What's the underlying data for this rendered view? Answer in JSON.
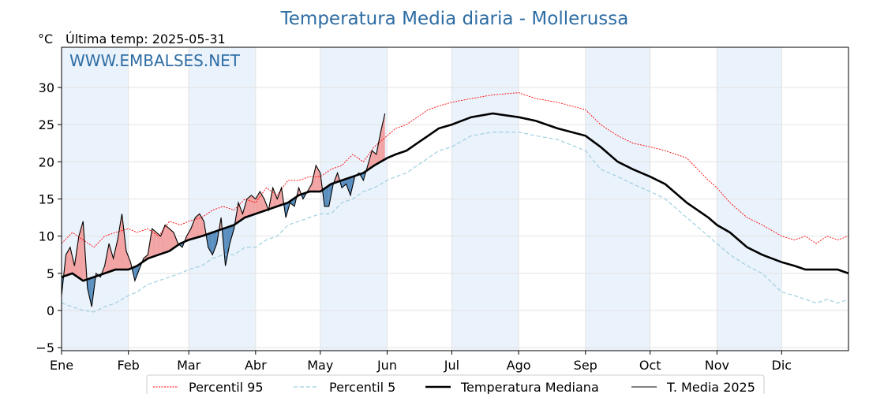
{
  "chart_data": {
    "type": "line",
    "title": "Temperatura Media diaria - Mollerussa",
    "unit_label": "°C",
    "last_temp_label": "Última temp: 2025-05-31",
    "watermark": "WWW.EMBALSES.NET",
    "xlabel": "",
    "ylabel": "",
    "ylim": [
      -5.4,
      35.4
    ],
    "xlim": [
      0,
      365
    ],
    "yticks": [
      -5,
      0,
      5,
      10,
      15,
      20,
      25,
      30
    ],
    "ytick_labels": [
      "−5",
      "0",
      "5",
      "10",
      "15",
      "20",
      "25",
      "30"
    ],
    "month_labels": [
      "Ene",
      "Feb",
      "Mar",
      "Abr",
      "May",
      "Jun",
      "Jul",
      "Ago",
      "Sep",
      "Oct",
      "Nov",
      "Dic"
    ],
    "month_days": [
      0,
      31,
      59,
      90,
      120,
      151,
      181,
      212,
      243,
      273,
      304,
      334
    ],
    "grid": true,
    "legend_position": "bottom",
    "colors": {
      "p95": "#ff0000",
      "p5": "#9ecfe0",
      "median": "#000000",
      "current": "#000000",
      "above": "#f2a3a3",
      "below": "#5a8fbf",
      "shade": "#eaf2fb",
      "title": "#2e6da4"
    },
    "series": [
      {
        "name": "Percentil 95",
        "style": "dotted",
        "x": [
          0,
          5,
          10,
          15,
          20,
          25,
          31,
          35,
          40,
          45,
          50,
          55,
          59,
          65,
          70,
          75,
          80,
          85,
          90,
          95,
          100,
          105,
          110,
          115,
          120,
          125,
          130,
          135,
          140,
          145,
          151,
          155,
          160,
          165,
          170,
          175,
          181,
          190,
          200,
          212,
          220,
          230,
          243,
          250,
          258,
          265,
          273,
          280,
          290,
          300,
          304,
          310,
          318,
          325,
          334,
          340,
          345,
          350,
          355,
          360,
          365
        ],
        "values": [
          9.0,
          10.5,
          9.5,
          8.5,
          10.0,
          10.5,
          11.0,
          10.5,
          11.0,
          10.0,
          12.0,
          11.5,
          12.0,
          12.5,
          13.5,
          14.0,
          13.5,
          15.0,
          14.5,
          16.5,
          15.5,
          17.5,
          17.5,
          18.0,
          18.0,
          19.0,
          19.5,
          21.0,
          20.0,
          22.0,
          23.5,
          24.5,
          25.0,
          26.0,
          27.0,
          27.5,
          28.0,
          28.5,
          29.0,
          29.3,
          28.5,
          28.0,
          27.0,
          25.0,
          23.5,
          22.5,
          22.0,
          21.5,
          20.5,
          17.5,
          16.5,
          14.5,
          12.5,
          11.5,
          10.0,
          9.5,
          10.0,
          9.0,
          10.0,
          9.5,
          10.0
        ]
      },
      {
        "name": "Percentil 5",
        "style": "dashed",
        "x": [
          0,
          5,
          10,
          15,
          20,
          25,
          31,
          35,
          40,
          45,
          50,
          55,
          59,
          65,
          70,
          75,
          80,
          85,
          90,
          95,
          100,
          105,
          110,
          115,
          120,
          125,
          130,
          135,
          140,
          145,
          151,
          155,
          160,
          165,
          170,
          175,
          181,
          190,
          200,
          212,
          220,
          230,
          243,
          250,
          258,
          265,
          273,
          280,
          290,
          300,
          304,
          310,
          318,
          325,
          334,
          340,
          345,
          350,
          355,
          360,
          365
        ],
        "values": [
          1.0,
          0.5,
          0.0,
          -0.2,
          0.5,
          1.0,
          2.0,
          2.5,
          3.5,
          4.0,
          4.5,
          5.0,
          5.5,
          6.0,
          7.0,
          7.5,
          7.5,
          8.5,
          8.5,
          9.5,
          10.0,
          11.5,
          12.0,
          12.5,
          13.0,
          13.0,
          14.5,
          15.0,
          16.0,
          16.5,
          17.5,
          18.0,
          18.5,
          19.5,
          20.5,
          21.5,
          22.0,
          23.5,
          24.0,
          24.0,
          23.5,
          23.0,
          21.5,
          19.0,
          18.0,
          17.0,
          16.0,
          15.0,
          12.5,
          10.0,
          9.0,
          7.5,
          6.0,
          5.0,
          2.5,
          2.0,
          1.5,
          1.0,
          1.5,
          1.0,
          1.5
        ]
      },
      {
        "name": "Temperatura Mediana",
        "style": "thick",
        "x": [
          0,
          5,
          10,
          15,
          20,
          25,
          31,
          35,
          40,
          45,
          50,
          55,
          59,
          65,
          70,
          75,
          80,
          85,
          90,
          95,
          100,
          105,
          110,
          115,
          120,
          125,
          130,
          135,
          140,
          145,
          151,
          155,
          160,
          165,
          170,
          175,
          181,
          190,
          200,
          212,
          220,
          230,
          243,
          250,
          258,
          265,
          273,
          280,
          290,
          300,
          304,
          310,
          318,
          325,
          334,
          340,
          345,
          350,
          355,
          360,
          365
        ],
        "values": [
          4.5,
          5.0,
          4.0,
          4.5,
          5.0,
          5.5,
          5.5,
          6.0,
          7.0,
          7.5,
          8.0,
          9.0,
          9.5,
          10.0,
          10.5,
          11.0,
          11.5,
          12.5,
          13.0,
          13.5,
          14.0,
          14.5,
          15.5,
          16.0,
          16.0,
          17.0,
          17.5,
          18.0,
          18.5,
          19.5,
          20.5,
          21.0,
          21.5,
          22.5,
          23.5,
          24.5,
          25.0,
          26.0,
          26.5,
          26.0,
          25.5,
          24.5,
          23.5,
          22.0,
          20.0,
          19.0,
          18.0,
          17.0,
          14.5,
          12.5,
          11.5,
          10.5,
          8.5,
          7.5,
          6.5,
          6.0,
          5.5,
          5.5,
          5.5,
          5.5,
          5.0
        ]
      },
      {
        "name": "T. Media 2025",
        "style": "thin",
        "x": [
          0,
          2,
          4,
          6,
          8,
          10,
          12,
          14,
          16,
          18,
          20,
          22,
          24,
          26,
          28,
          30,
          32,
          34,
          36,
          38,
          40,
          42,
          44,
          46,
          48,
          50,
          52,
          54,
          56,
          58,
          60,
          62,
          64,
          66,
          68,
          70,
          72,
          74,
          76,
          78,
          80,
          82,
          84,
          86,
          88,
          90,
          92,
          94,
          96,
          98,
          100,
          102,
          104,
          106,
          108,
          110,
          112,
          114,
          116,
          118,
          120,
          122,
          124,
          126,
          128,
          130,
          132,
          134,
          136,
          138,
          140,
          142,
          144,
          146,
          148,
          150
        ],
        "values": [
          2.0,
          7.5,
          8.5,
          6.0,
          10.0,
          12.0,
          3.0,
          0.5,
          5.0,
          4.5,
          6.0,
          9.0,
          7.0,
          9.5,
          13.0,
          8.0,
          6.5,
          4.0,
          5.5,
          7.0,
          7.5,
          11.0,
          10.5,
          10.0,
          11.5,
          11.0,
          10.5,
          9.0,
          8.5,
          10.0,
          11.0,
          12.5,
          13.0,
          12.0,
          8.5,
          7.5,
          9.0,
          12.5,
          6.0,
          9.0,
          11.0,
          14.5,
          13.0,
          15.0,
          15.5,
          15.0,
          16.0,
          15.0,
          13.5,
          16.5,
          15.0,
          16.5,
          12.5,
          14.5,
          14.0,
          16.5,
          15.0,
          16.0,
          17.0,
          19.5,
          18.5,
          14.0,
          14.0,
          17.0,
          18.5,
          16.5,
          17.0,
          15.5,
          18.0,
          18.5,
          17.5,
          19.5,
          21.5,
          21.0,
          24.0,
          26.5
        ]
      }
    ]
  }
}
